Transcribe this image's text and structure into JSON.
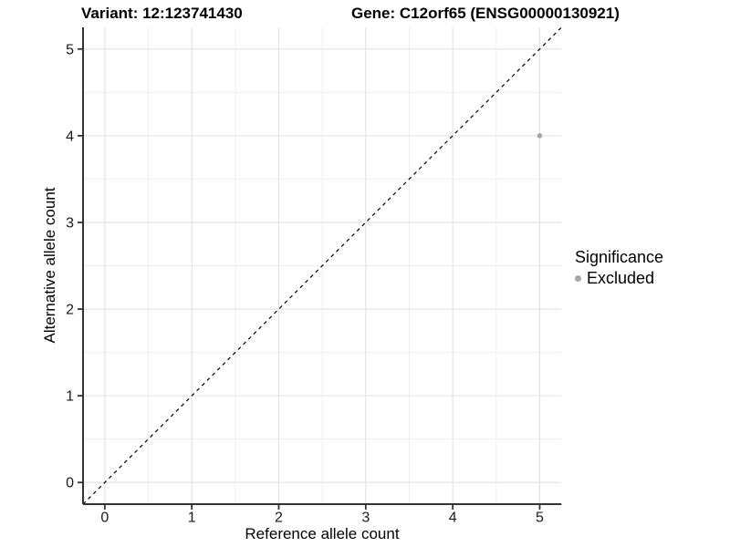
{
  "titles": {
    "variant": "Variant: 12:123741430",
    "gene": "Gene: C12orf65 (ENSG00000130921)"
  },
  "legend": {
    "title": "Significance",
    "items": [
      {
        "label": "Excluded",
        "color": "#a6a6a6",
        "marker": "dot"
      }
    ]
  },
  "chart_data": {
    "type": "scatter",
    "title_left": "Variant: 12:123741430",
    "title_right": "Gene: C12orf65 (ENSG00000130921)",
    "xlabel": "Reference allele count",
    "ylabel": "Alternative allele count",
    "xlim": [
      -0.25,
      5.25
    ],
    "ylim": [
      -0.25,
      5.25
    ],
    "x_ticks": [
      0,
      1,
      2,
      3,
      4,
      5
    ],
    "y_ticks": [
      0,
      1,
      2,
      3,
      4,
      5
    ],
    "x_minor_ticks": [
      0.5,
      1.5,
      2.5,
      3.5,
      4.5
    ],
    "y_minor_ticks": [
      0.5,
      1.5,
      2.5,
      3.5,
      4.5
    ],
    "grid": "major+minor",
    "legend_position": "right",
    "series": [
      {
        "name": "Excluded",
        "color": "#a6a6a6",
        "points": [
          {
            "x": 5,
            "y": 4
          }
        ]
      }
    ],
    "reference_line": {
      "type": "identity",
      "from": [
        -0.25,
        -0.25
      ],
      "to": [
        5.25,
        5.25
      ],
      "style": "dashed",
      "color": "#000000"
    }
  },
  "colors": {
    "background": "#ffffff",
    "grid_major": "#e2e2e2",
    "grid_minor": "#efefef",
    "axis_line": "#333333",
    "tick_mark": "#333333",
    "point": "#a6a6a6",
    "reference_line": "#000000",
    "text": "#1a1a1a"
  }
}
